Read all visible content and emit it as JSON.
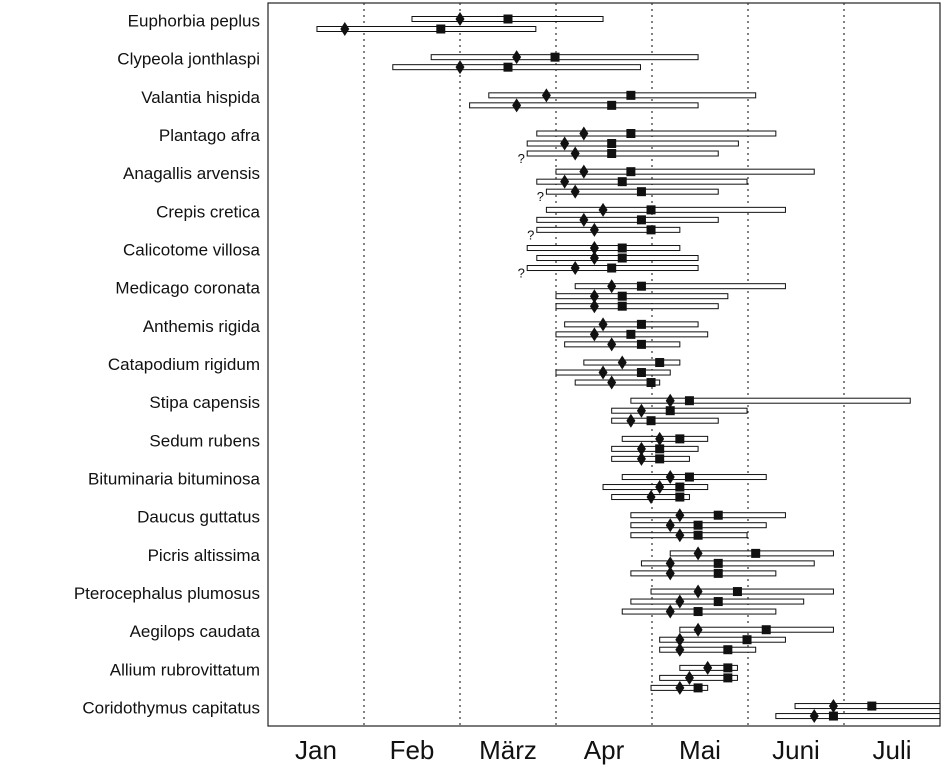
{
  "chart_data": {
    "type": "phenology",
    "xlim": [
      0,
      7
    ],
    "xticks": [
      {
        "value": 0.5,
        "label": "Jan"
      },
      {
        "value": 1.5,
        "label": "Feb"
      },
      {
        "value": 2.5,
        "label": "März"
      },
      {
        "value": 3.5,
        "label": "Apr"
      },
      {
        "value": 4.5,
        "label": "Mai"
      },
      {
        "value": 5.5,
        "label": "Juni"
      },
      {
        "value": 6.5,
        "label": "Juli"
      }
    ],
    "xgrid": [
      1,
      2,
      3,
      4,
      5,
      6
    ],
    "categories": [
      "Euphorbia peplus",
      "Clypeola jonthlaspi",
      "Valantia hispida",
      "Plantago afra",
      "Anagallis arvensis",
      "Crepis cretica",
      "Calicotome villosa",
      "Medicago coronata",
      "Anthemis rigida",
      "Catapodium rigidum",
      "Stipa capensis",
      "Sedum rubens",
      "Bituminaria bituminosa",
      "Daucus guttatus",
      "Picris altissima",
      "Pterocephalus plumosus",
      "Aegilops caudata",
      "Allium rubrovittatum",
      "Coridothymus capitatus"
    ],
    "ranges": [
      [
        {
          "start": 1.5,
          "end": 3.49,
          "diamond": 2.0,
          "square": 2.5
        },
        {
          "start": 0.51,
          "end": 2.79,
          "diamond": 0.8,
          "square": 1.8
        }
      ],
      [
        {
          "start": 1.7,
          "end": 4.48,
          "diamond": 2.59,
          "square": 2.99
        },
        {
          "start": 1.3,
          "end": 3.88,
          "diamond": 2.0,
          "square": 2.5
        }
      ],
      [
        {
          "start": 2.3,
          "end": 5.08,
          "diamond": 2.9,
          "square": 3.78
        },
        {
          "start": 2.1,
          "end": 4.48,
          "diamond": 2.59,
          "square": 3.58
        }
      ],
      [
        {
          "start": 2.8,
          "end": 5.29,
          "diamond": 3.29,
          "square": 3.78
        },
        {
          "start": 2.7,
          "end": 4.9,
          "diamond": 3.09,
          "square": 3.58
        },
        {
          "start": 2.7,
          "end": 4.69,
          "diamond": 3.2,
          "square": 3.58,
          "note": "?"
        }
      ],
      [
        {
          "start": 3.0,
          "end": 5.69,
          "diamond": 3.29,
          "square": 3.78
        },
        {
          "start": 2.8,
          "end": 4.99,
          "diamond": 3.09,
          "square": 3.69
        },
        {
          "start": 2.9,
          "end": 4.69,
          "diamond": 3.2,
          "square": 3.89,
          "note": "?"
        }
      ],
      [
        {
          "start": 2.9,
          "end": 5.39,
          "diamond": 3.49,
          "square": 3.99
        },
        {
          "start": 2.8,
          "end": 4.69,
          "diamond": 3.29,
          "square": 3.89
        },
        {
          "start": 2.8,
          "end": 4.29,
          "diamond": 3.4,
          "square": 3.99,
          "note": "?"
        }
      ],
      [
        {
          "start": 2.7,
          "end": 4.29,
          "diamond": 3.4,
          "square": 3.69
        },
        {
          "start": 2.8,
          "end": 4.48,
          "diamond": 3.4,
          "square": 3.69
        },
        {
          "start": 2.7,
          "end": 4.48,
          "diamond": 3.2,
          "square": 3.58,
          "note": "?"
        }
      ],
      [
        {
          "start": 3.2,
          "end": 5.39,
          "diamond": 3.58,
          "square": 3.89
        },
        {
          "start": 3.0,
          "end": 4.79,
          "diamond": 3.4,
          "square": 3.69
        },
        {
          "start": 3.0,
          "end": 4.69,
          "diamond": 3.4,
          "square": 3.69
        }
      ],
      [
        {
          "start": 3.09,
          "end": 4.48,
          "diamond": 3.49,
          "square": 3.89
        },
        {
          "start": 3.0,
          "end": 4.58,
          "diamond": 3.4,
          "square": 3.78
        },
        {
          "start": 3.09,
          "end": 4.29,
          "diamond": 3.58,
          "square": 3.89
        }
      ],
      [
        {
          "start": 3.29,
          "end": 4.29,
          "diamond": 3.69,
          "square": 4.08
        },
        {
          "start": 3.0,
          "end": 4.19,
          "diamond": 3.49,
          "square": 3.89
        },
        {
          "start": 3.2,
          "end": 4.08,
          "diamond": 3.58,
          "square": 3.99
        }
      ],
      [
        {
          "start": 3.78,
          "end": 6.69,
          "diamond": 4.19,
          "square": 4.39
        },
        {
          "start": 3.58,
          "end": 4.99,
          "diamond": 3.89,
          "square": 4.19
        },
        {
          "start": 3.58,
          "end": 4.69,
          "diamond": 3.78,
          "square": 3.99
        }
      ],
      [
        {
          "start": 3.69,
          "end": 4.58,
          "diamond": 4.08,
          "square": 4.29
        },
        {
          "start": 3.58,
          "end": 4.48,
          "diamond": 3.89,
          "square": 4.08
        },
        {
          "start": 3.58,
          "end": 4.39,
          "diamond": 3.89,
          "square": 4.08
        }
      ],
      [
        {
          "start": 3.69,
          "end": 5.19,
          "diamond": 4.19,
          "square": 4.39
        },
        {
          "start": 3.49,
          "end": 4.58,
          "diamond": 4.08,
          "square": 4.29
        },
        {
          "start": 3.58,
          "end": 4.39,
          "diamond": 3.99,
          "square": 4.29
        }
      ],
      [
        {
          "start": 3.78,
          "end": 5.39,
          "diamond": 4.29,
          "square": 4.69
        },
        {
          "start": 3.78,
          "end": 5.19,
          "diamond": 4.19,
          "square": 4.48
        },
        {
          "start": 3.78,
          "end": 4.99,
          "diamond": 4.29,
          "square": 4.48
        }
      ],
      [
        {
          "start": 4.19,
          "end": 5.89,
          "diamond": 4.48,
          "square": 5.08
        },
        {
          "start": 3.89,
          "end": 5.69,
          "diamond": 4.19,
          "square": 4.69
        },
        {
          "start": 3.78,
          "end": 5.29,
          "diamond": 4.19,
          "square": 4.69
        }
      ],
      [
        {
          "start": 3.99,
          "end": 5.89,
          "diamond": 4.48,
          "square": 4.89
        },
        {
          "start": 3.78,
          "end": 5.58,
          "diamond": 4.29,
          "square": 4.69
        },
        {
          "start": 3.69,
          "end": 5.29,
          "diamond": 4.19,
          "square": 4.48
        }
      ],
      [
        {
          "start": 4.29,
          "end": 5.89,
          "diamond": 4.48,
          "square": 5.19
        },
        {
          "start": 4.08,
          "end": 5.39,
          "diamond": 4.29,
          "square": 4.99
        },
        {
          "start": 4.08,
          "end": 5.08,
          "diamond": 4.29,
          "square": 4.79
        }
      ],
      [
        {
          "start": 4.29,
          "end": 4.89,
          "diamond": 4.58,
          "square": 4.79
        },
        {
          "start": 4.08,
          "end": 4.89,
          "diamond": 4.39,
          "square": 4.79
        },
        {
          "start": 3.99,
          "end": 4.58,
          "diamond": 4.29,
          "square": 4.48
        }
      ],
      [
        {
          "start": 5.49,
          "end": 7.0,
          "diamond": 5.89,
          "square": 6.29
        },
        {
          "start": 5.29,
          "end": 7.0,
          "diamond": 5.69,
          "square": 5.89
        }
      ]
    ]
  }
}
